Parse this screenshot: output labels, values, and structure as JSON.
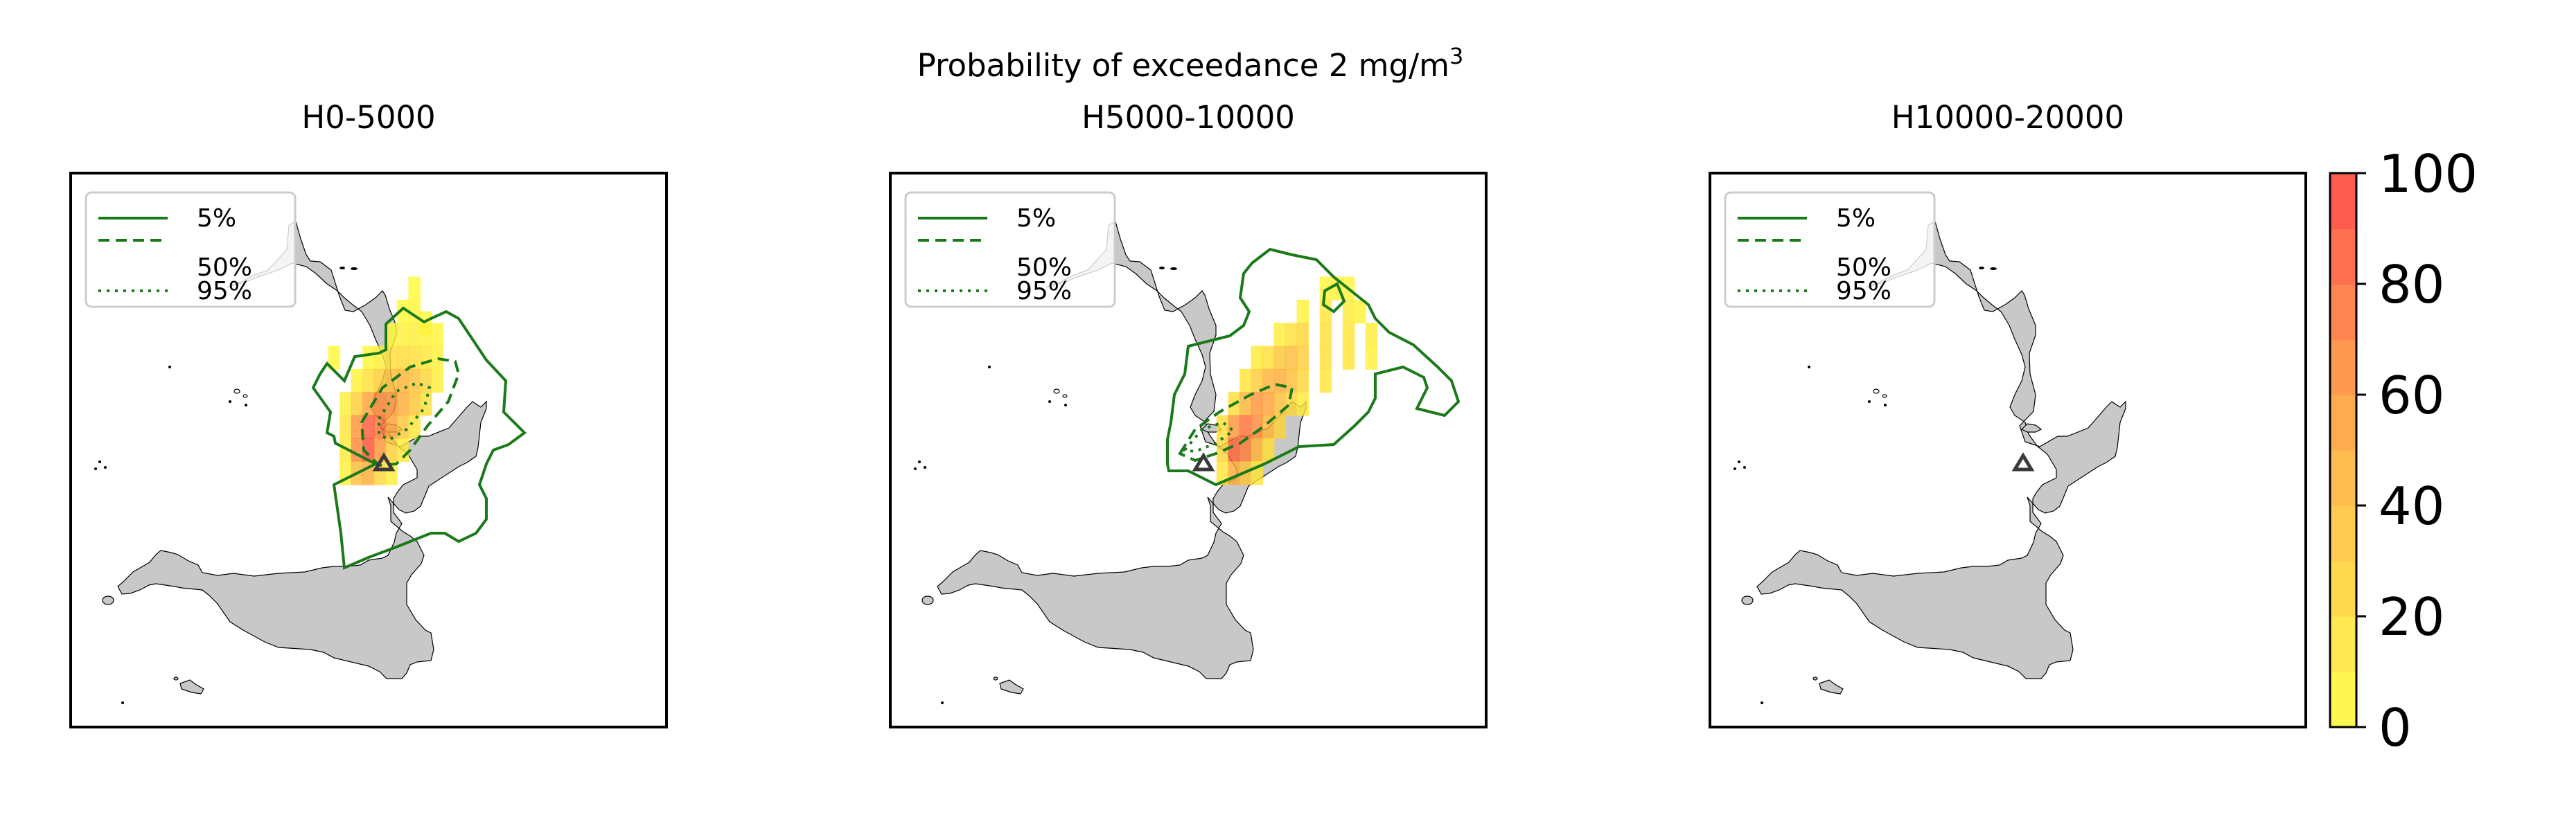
{
  "figure": {
    "suptitle_line1": "Probability of exceedance 2 mg/m",
    "suptitle_sup": "3"
  },
  "legend": [
    {
      "label": "5%",
      "style": "solid"
    },
    {
      "label": "50%",
      "style": "dashed"
    },
    {
      "label": "95%",
      "style": "dotted"
    }
  ],
  "colors": {
    "land": "#c8c8c8",
    "contour": "#1a7a1a",
    "vent_marker": "#3a3a3a",
    "cmap_low": "#ffff33",
    "cmap_mid": "#ffa933",
    "cmap_high": "#ff3333"
  },
  "icons": {
    "vent": "triangle-icon"
  },
  "chart_data": [
    {
      "type": "heatmap",
      "title": "H0-5000",
      "cells": [
        [
          14.9,
          39.2,
          3
        ],
        [
          15.0,
          39.2,
          6
        ],
        [
          15.1,
          39.1,
          4
        ],
        [
          14.8,
          39.0,
          4
        ],
        [
          14.9,
          39.0,
          8
        ],
        [
          15.0,
          39.0,
          10
        ],
        [
          15.1,
          39.0,
          8
        ],
        [
          15.2,
          39.0,
          5
        ],
        [
          14.6,
          38.8,
          5
        ],
        [
          14.7,
          38.8,
          10
        ],
        [
          14.8,
          38.8,
          18
        ],
        [
          14.9,
          38.8,
          22
        ],
        [
          15.0,
          38.8,
          20
        ],
        [
          15.1,
          38.8,
          15
        ],
        [
          15.2,
          38.8,
          8
        ],
        [
          14.5,
          38.6,
          8
        ],
        [
          14.6,
          38.6,
          20
        ],
        [
          14.7,
          38.6,
          30
        ],
        [
          14.8,
          38.6,
          40
        ],
        [
          14.9,
          38.6,
          45
        ],
        [
          15.0,
          38.6,
          38
        ],
        [
          15.1,
          38.6,
          25
        ],
        [
          15.2,
          38.6,
          10
        ],
        [
          14.4,
          38.4,
          10
        ],
        [
          14.5,
          38.4,
          30
        ],
        [
          14.6,
          38.4,
          55
        ],
        [
          14.7,
          38.4,
          65
        ],
        [
          14.8,
          38.4,
          60
        ],
        [
          14.9,
          38.4,
          50
        ],
        [
          15.0,
          38.4,
          35
        ],
        [
          15.1,
          38.4,
          20
        ],
        [
          14.4,
          38.2,
          15
        ],
        [
          14.5,
          38.2,
          60
        ],
        [
          14.6,
          38.2,
          85
        ],
        [
          14.7,
          38.2,
          75
        ],
        [
          14.8,
          38.2,
          55
        ],
        [
          14.9,
          38.2,
          35
        ],
        [
          15.0,
          38.2,
          15
        ],
        [
          14.4,
          38.0,
          12
        ],
        [
          14.5,
          38.0,
          65
        ],
        [
          14.6,
          38.0,
          90
        ],
        [
          14.7,
          38.0,
          60
        ],
        [
          14.8,
          38.0,
          30
        ],
        [
          14.9,
          38.0,
          12
        ],
        [
          14.4,
          37.8,
          8
        ],
        [
          14.5,
          37.8,
          40
        ],
        [
          14.6,
          37.8,
          50
        ],
        [
          14.7,
          37.8,
          25
        ],
        [
          14.8,
          37.8,
          10
        ],
        [
          15.0,
          39.4,
          3
        ],
        [
          14.3,
          38.8,
          4
        ]
      ],
      "contours": [
        "5%",
        "50%",
        "95%"
      ],
      "vent": {
        "lon": 15.0,
        "lat": 37.75
      }
    },
    {
      "type": "heatmap",
      "title": "H5000-10000",
      "cells": [
        [
          15.8,
          39.4,
          6
        ],
        [
          15.9,
          39.4,
          8
        ],
        [
          16.0,
          39.4,
          6
        ],
        [
          15.6,
          39.2,
          8
        ],
        [
          15.8,
          39.2,
          15
        ],
        [
          16.0,
          39.2,
          12
        ],
        [
          16.1,
          39.2,
          8
        ],
        [
          15.4,
          39.0,
          10
        ],
        [
          15.5,
          39.0,
          18
        ],
        [
          15.6,
          39.0,
          25
        ],
        [
          15.8,
          39.0,
          20
        ],
        [
          16.0,
          39.0,
          15
        ],
        [
          16.2,
          39.0,
          10
        ],
        [
          15.2,
          38.8,
          12
        ],
        [
          15.3,
          38.8,
          20
        ],
        [
          15.4,
          38.8,
          35
        ],
        [
          15.5,
          38.8,
          40
        ],
        [
          15.6,
          38.8,
          30
        ],
        [
          15.8,
          38.8,
          20
        ],
        [
          16.0,
          38.8,
          15
        ],
        [
          16.2,
          38.8,
          8
        ],
        [
          15.1,
          38.6,
          15
        ],
        [
          15.2,
          38.6,
          30
        ],
        [
          15.3,
          38.6,
          45
        ],
        [
          15.4,
          38.6,
          50
        ],
        [
          15.5,
          38.6,
          40
        ],
        [
          15.6,
          38.6,
          25
        ],
        [
          15.8,
          38.6,
          15
        ],
        [
          15.0,
          38.4,
          20
        ],
        [
          15.1,
          38.4,
          45
        ],
        [
          15.2,
          38.4,
          60
        ],
        [
          15.3,
          38.4,
          55
        ],
        [
          15.4,
          38.4,
          40
        ],
        [
          15.5,
          38.4,
          25
        ],
        [
          15.6,
          38.4,
          12
        ],
        [
          14.9,
          38.2,
          20
        ],
        [
          15.0,
          38.2,
          60
        ],
        [
          15.1,
          38.2,
          75
        ],
        [
          15.2,
          38.2,
          65
        ],
        [
          15.3,
          38.2,
          45
        ],
        [
          15.4,
          38.2,
          25
        ],
        [
          14.9,
          38.0,
          25
        ],
        [
          15.0,
          38.0,
          80
        ],
        [
          15.1,
          38.0,
          70
        ],
        [
          15.2,
          38.0,
          45
        ],
        [
          15.3,
          38.0,
          20
        ],
        [
          14.9,
          37.8,
          15
        ],
        [
          15.0,
          37.8,
          50
        ],
        [
          15.1,
          37.8,
          35
        ],
        [
          15.2,
          37.8,
          15
        ]
      ],
      "contours": [
        "5%",
        "50%",
        "95%"
      ],
      "vent": {
        "lon": 15.0,
        "lat": 37.75
      }
    },
    {
      "type": "heatmap",
      "title": "H10000-20000",
      "cells": [],
      "contours": [
        "5%",
        "50%",
        "95%"
      ],
      "vent": {
        "lon": 15.0,
        "lat": 37.75
      }
    }
  ],
  "colorbar": {
    "ticks": [
      "0",
      "20",
      "40",
      "60",
      "80",
      "100"
    ],
    "min": 0,
    "max": 100,
    "bands": 10
  }
}
